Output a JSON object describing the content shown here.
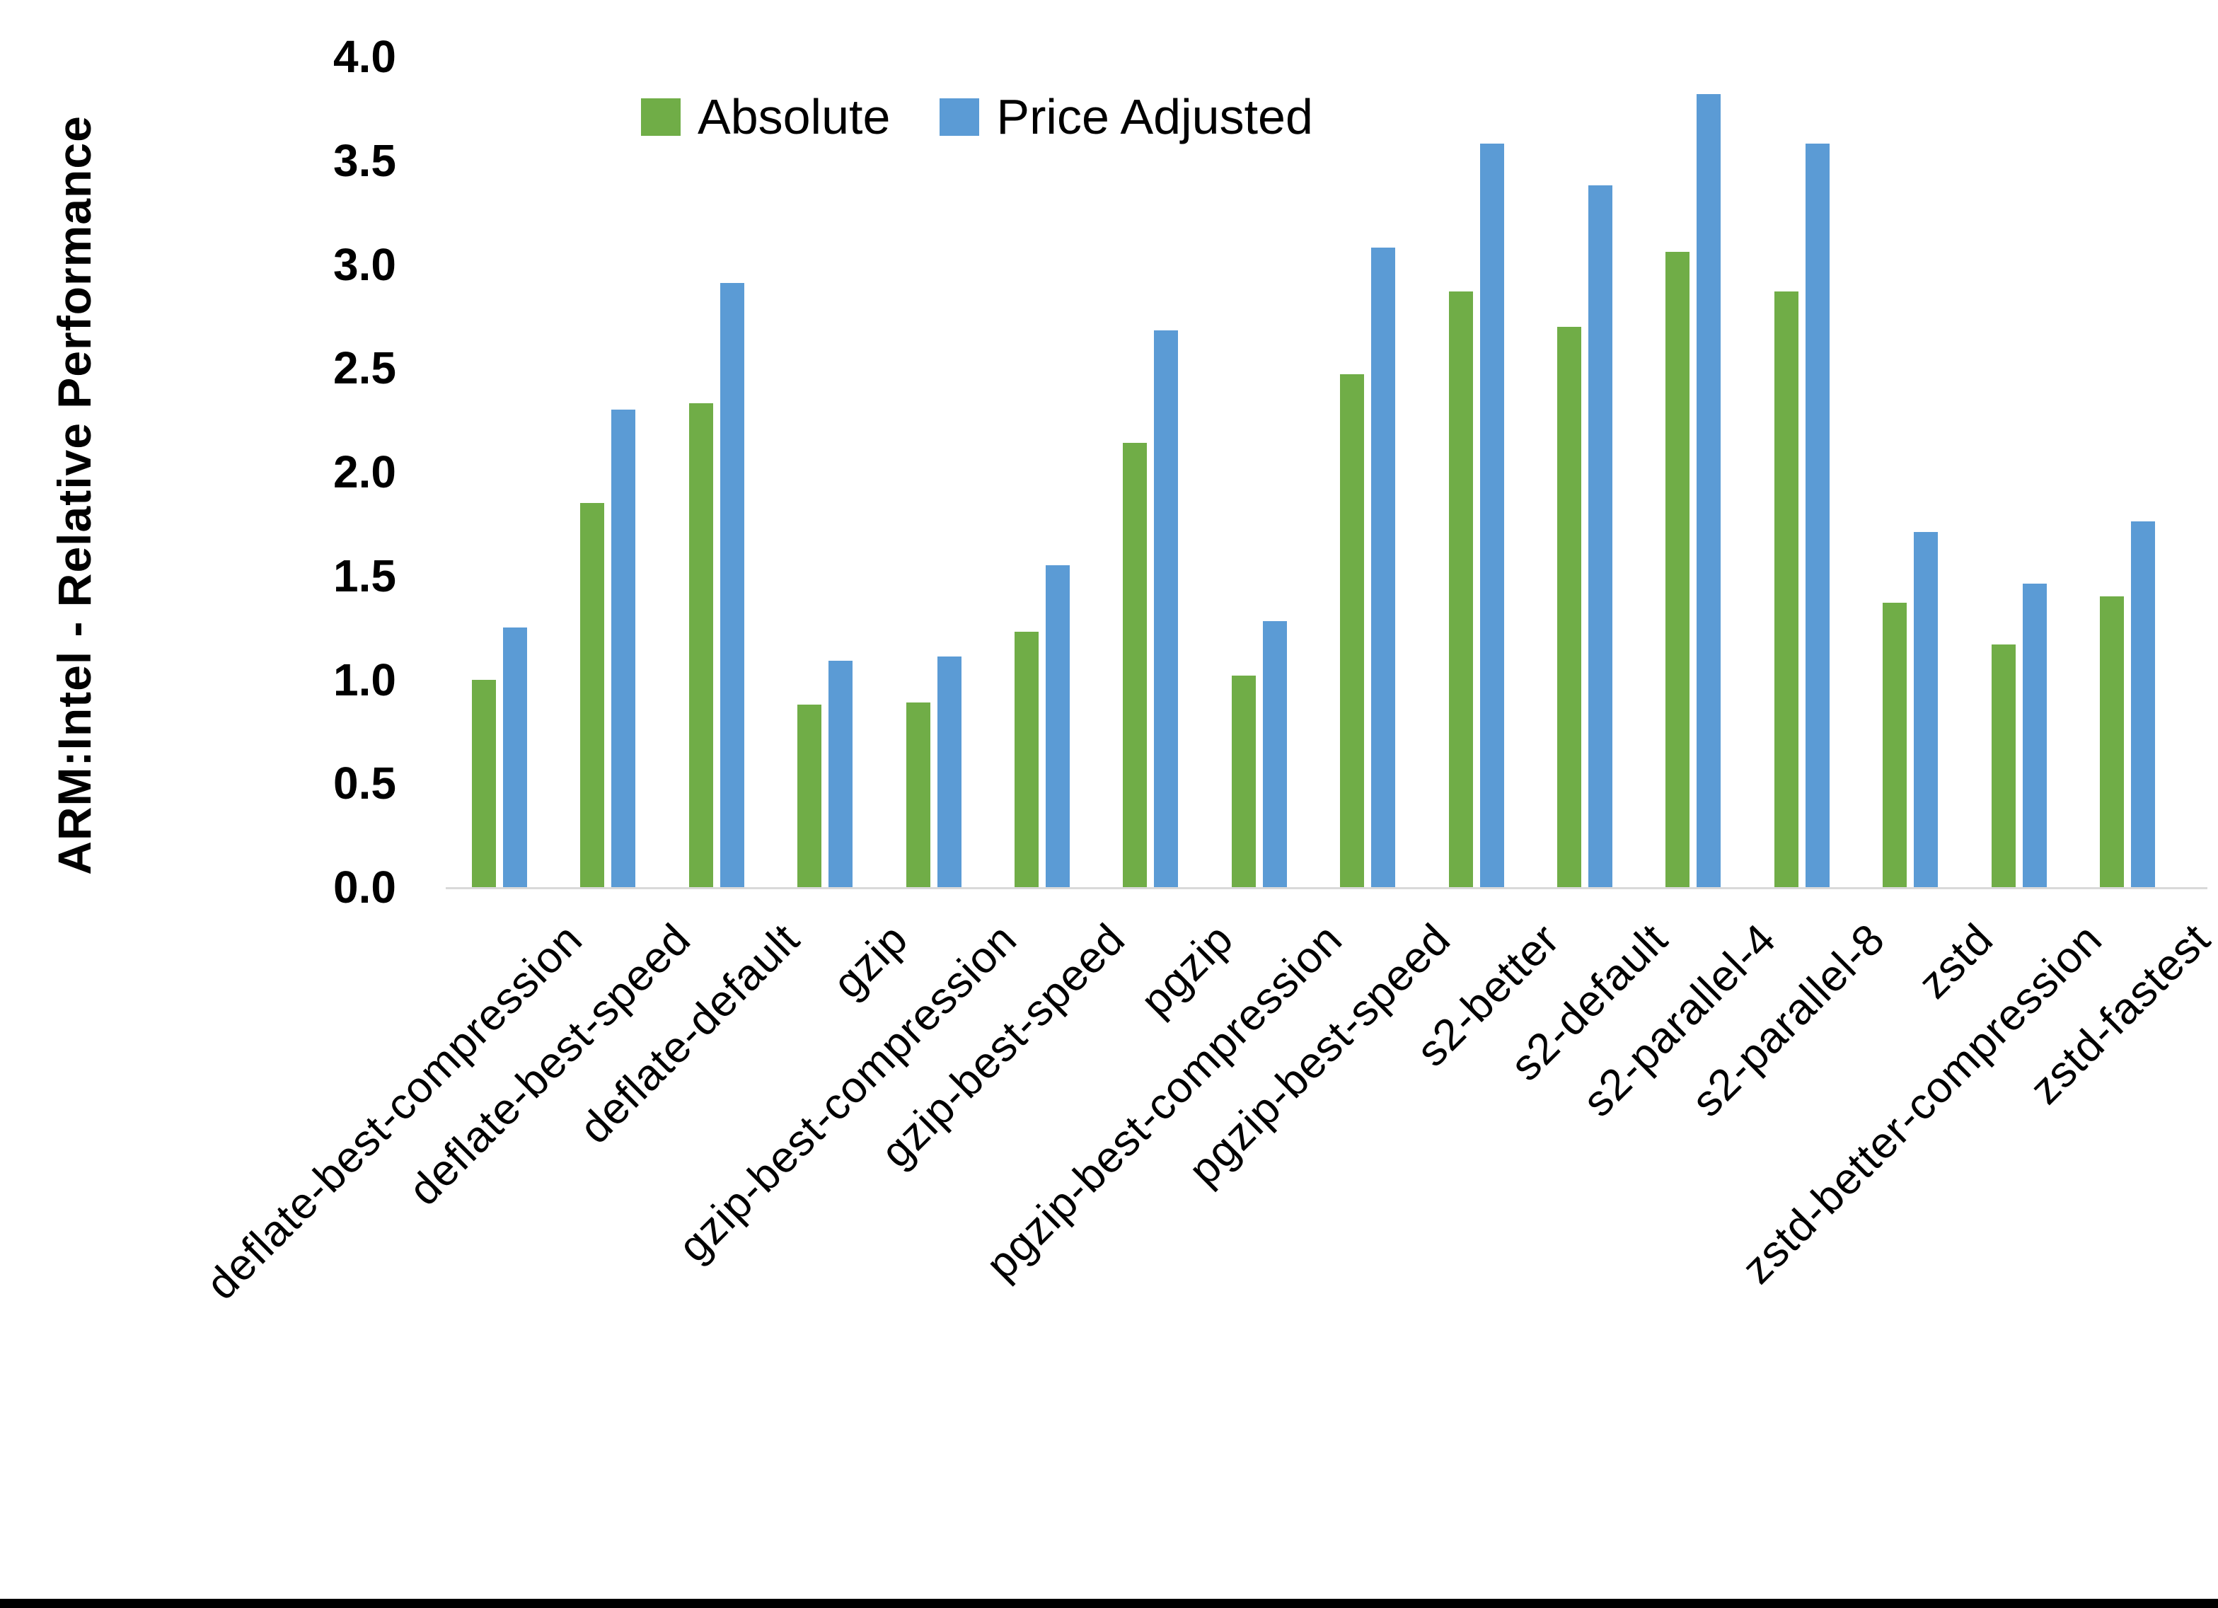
{
  "chart_data": {
    "type": "bar",
    "title": "",
    "xlabel": "",
    "ylabel": "ARM:Intel - Relative Performance",
    "ylim": [
      0.0,
      4.0
    ],
    "ytick_step": 0.5,
    "grid": false,
    "legend_position": "top-center",
    "categories": [
      "deflate-best-compression",
      "deflate-best-speed",
      "deflate-default",
      "gzip",
      "gzip-best-compression",
      "gzip-best-speed",
      "pgzip",
      "pgzip-best-compression",
      "pgzip-best-speed",
      "s2-better",
      "s2-default",
      "s2-parallel-4",
      "s2-parallel-8",
      "zstd",
      "zstd-better-compression",
      "zstd-fastest"
    ],
    "series": [
      {
        "name": "Absolute",
        "color": "#70AD47",
        "values": [
          1.0,
          1.85,
          2.33,
          0.88,
          0.89,
          1.23,
          2.14,
          1.02,
          2.47,
          2.87,
          2.7,
          3.06,
          2.87,
          1.37,
          1.17,
          1.4
        ]
      },
      {
        "name": "Price Adjusted",
        "color": "#5B9BD5",
        "values": [
          1.25,
          2.3,
          2.91,
          1.09,
          1.11,
          1.55,
          2.68,
          1.28,
          3.08,
          3.58,
          3.38,
          3.82,
          3.58,
          1.71,
          1.46,
          1.76
        ]
      }
    ]
  },
  "colors": {
    "axis_line": "#D9D9D9",
    "frame_bottom": "#000000",
    "text": "#000000"
  }
}
